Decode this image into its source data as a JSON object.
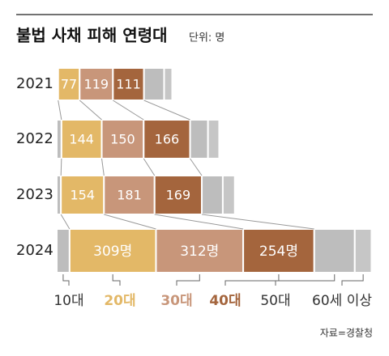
{
  "chart_data": {
    "type": "stacked-bar",
    "title": "불법 사채 피해 연령대",
    "subtitle": "단위: 명",
    "source": "자료=경찰청",
    "categories": [
      "2021",
      "2022",
      "2023",
      "2024"
    ],
    "series": [
      {
        "name": "10대",
        "color": "#bdbdbd",
        "values": [
          5,
          17,
          15,
          46
        ]
      },
      {
        "name": "20대",
        "color": "#e3b867",
        "values": [
          77,
          144,
          154,
          309
        ],
        "value_labels": [
          "77",
          "144",
          "154",
          "309명"
        ]
      },
      {
        "name": "30대",
        "color": "#c8967a",
        "values": [
          119,
          150,
          181,
          312
        ],
        "value_labels": [
          "119",
          "150",
          "181",
          "312명"
        ]
      },
      {
        "name": "40대",
        "color": "#a4653d",
        "values": [
          111,
          166,
          169,
          254
        ],
        "value_labels": [
          "111",
          "166",
          "169",
          "254명"
        ]
      },
      {
        "name": "50대",
        "color": "#bdbdbd",
        "values": [
          72,
          64,
          75,
          145
        ]
      },
      {
        "name": "60세 이상",
        "color": "#c6c6c6",
        "values": [
          29,
          40,
          43,
          60
        ]
      }
    ]
  }
}
